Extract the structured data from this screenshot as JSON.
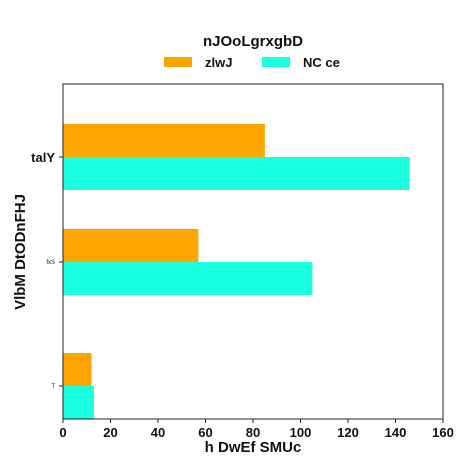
{
  "chart_data": {
    "type": "bar",
    "orientation": "horizontal",
    "title": "nJOoLgrxgbD",
    "xlabel": "h DwEf SMUc",
    "ylabel": "VlbM DtODnFHJ",
    "categories": [
      "talY",
      "fxS",
      "T"
    ],
    "series": [
      {
        "name": "zlwJ",
        "color": "#FFA500",
        "values": [
          85,
          57,
          12
        ]
      },
      {
        "name": "NC ce",
        "color": "#19FFE0",
        "values": [
          146,
          105,
          13
        ]
      }
    ],
    "xlim": [
      0,
      160
    ],
    "xticks": [
      "0",
      "20",
      "40",
      "60",
      "80",
      "100",
      "120",
      "140",
      "160"
    ],
    "legend_position": "top-center",
    "grid": false
  }
}
